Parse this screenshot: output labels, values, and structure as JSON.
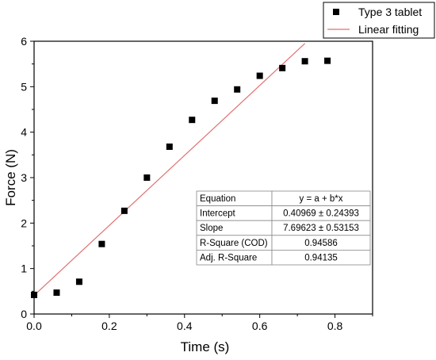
{
  "chart_data": {
    "type": "scatter",
    "xlabel": "Time (s)",
    "ylabel": "Force (N)",
    "xlim": [
      0,
      0.9
    ],
    "ylim": [
      0,
      6
    ],
    "xticks": [
      0.0,
      0.2,
      0.4,
      0.6,
      0.8
    ],
    "xtick_labels": [
      "0.0",
      "0.2",
      "0.4",
      "0.6",
      "0.8"
    ],
    "yticks": [
      0,
      1,
      2,
      3,
      4,
      5,
      6
    ],
    "ytick_labels": [
      "0",
      "1",
      "2",
      "3",
      "4",
      "5",
      "6"
    ],
    "grid": false,
    "legend_position": "top-right",
    "series": [
      {
        "name": "Type 3 tablet",
        "kind": "scatter",
        "color": "#000000",
        "x": [
          0.0,
          0.06,
          0.12,
          0.18,
          0.24,
          0.3,
          0.36,
          0.42,
          0.48,
          0.54,
          0.6,
          0.66,
          0.72,
          0.78
        ],
        "y": [
          0.42,
          0.47,
          0.71,
          1.54,
          2.27,
          3.0,
          3.68,
          4.27,
          4.69,
          4.94,
          5.24,
          5.41,
          5.56,
          5.57
        ]
      },
      {
        "name": "Linear fitting",
        "kind": "line",
        "color": "#e07070",
        "intercept": 0.40969,
        "slope": 7.69623,
        "x_range": [
          0.0,
          0.72
        ]
      }
    ],
    "stats_table": [
      [
        "Equation",
        "y = a + b*x"
      ],
      [
        "Intercept",
        "0.40969 ± 0.24393"
      ],
      [
        "Slope",
        "7.69623 ± 0.53153"
      ],
      [
        "R-Square (COD)",
        "0.94586"
      ],
      [
        "Adj. R-Square",
        "0.94135"
      ]
    ]
  }
}
